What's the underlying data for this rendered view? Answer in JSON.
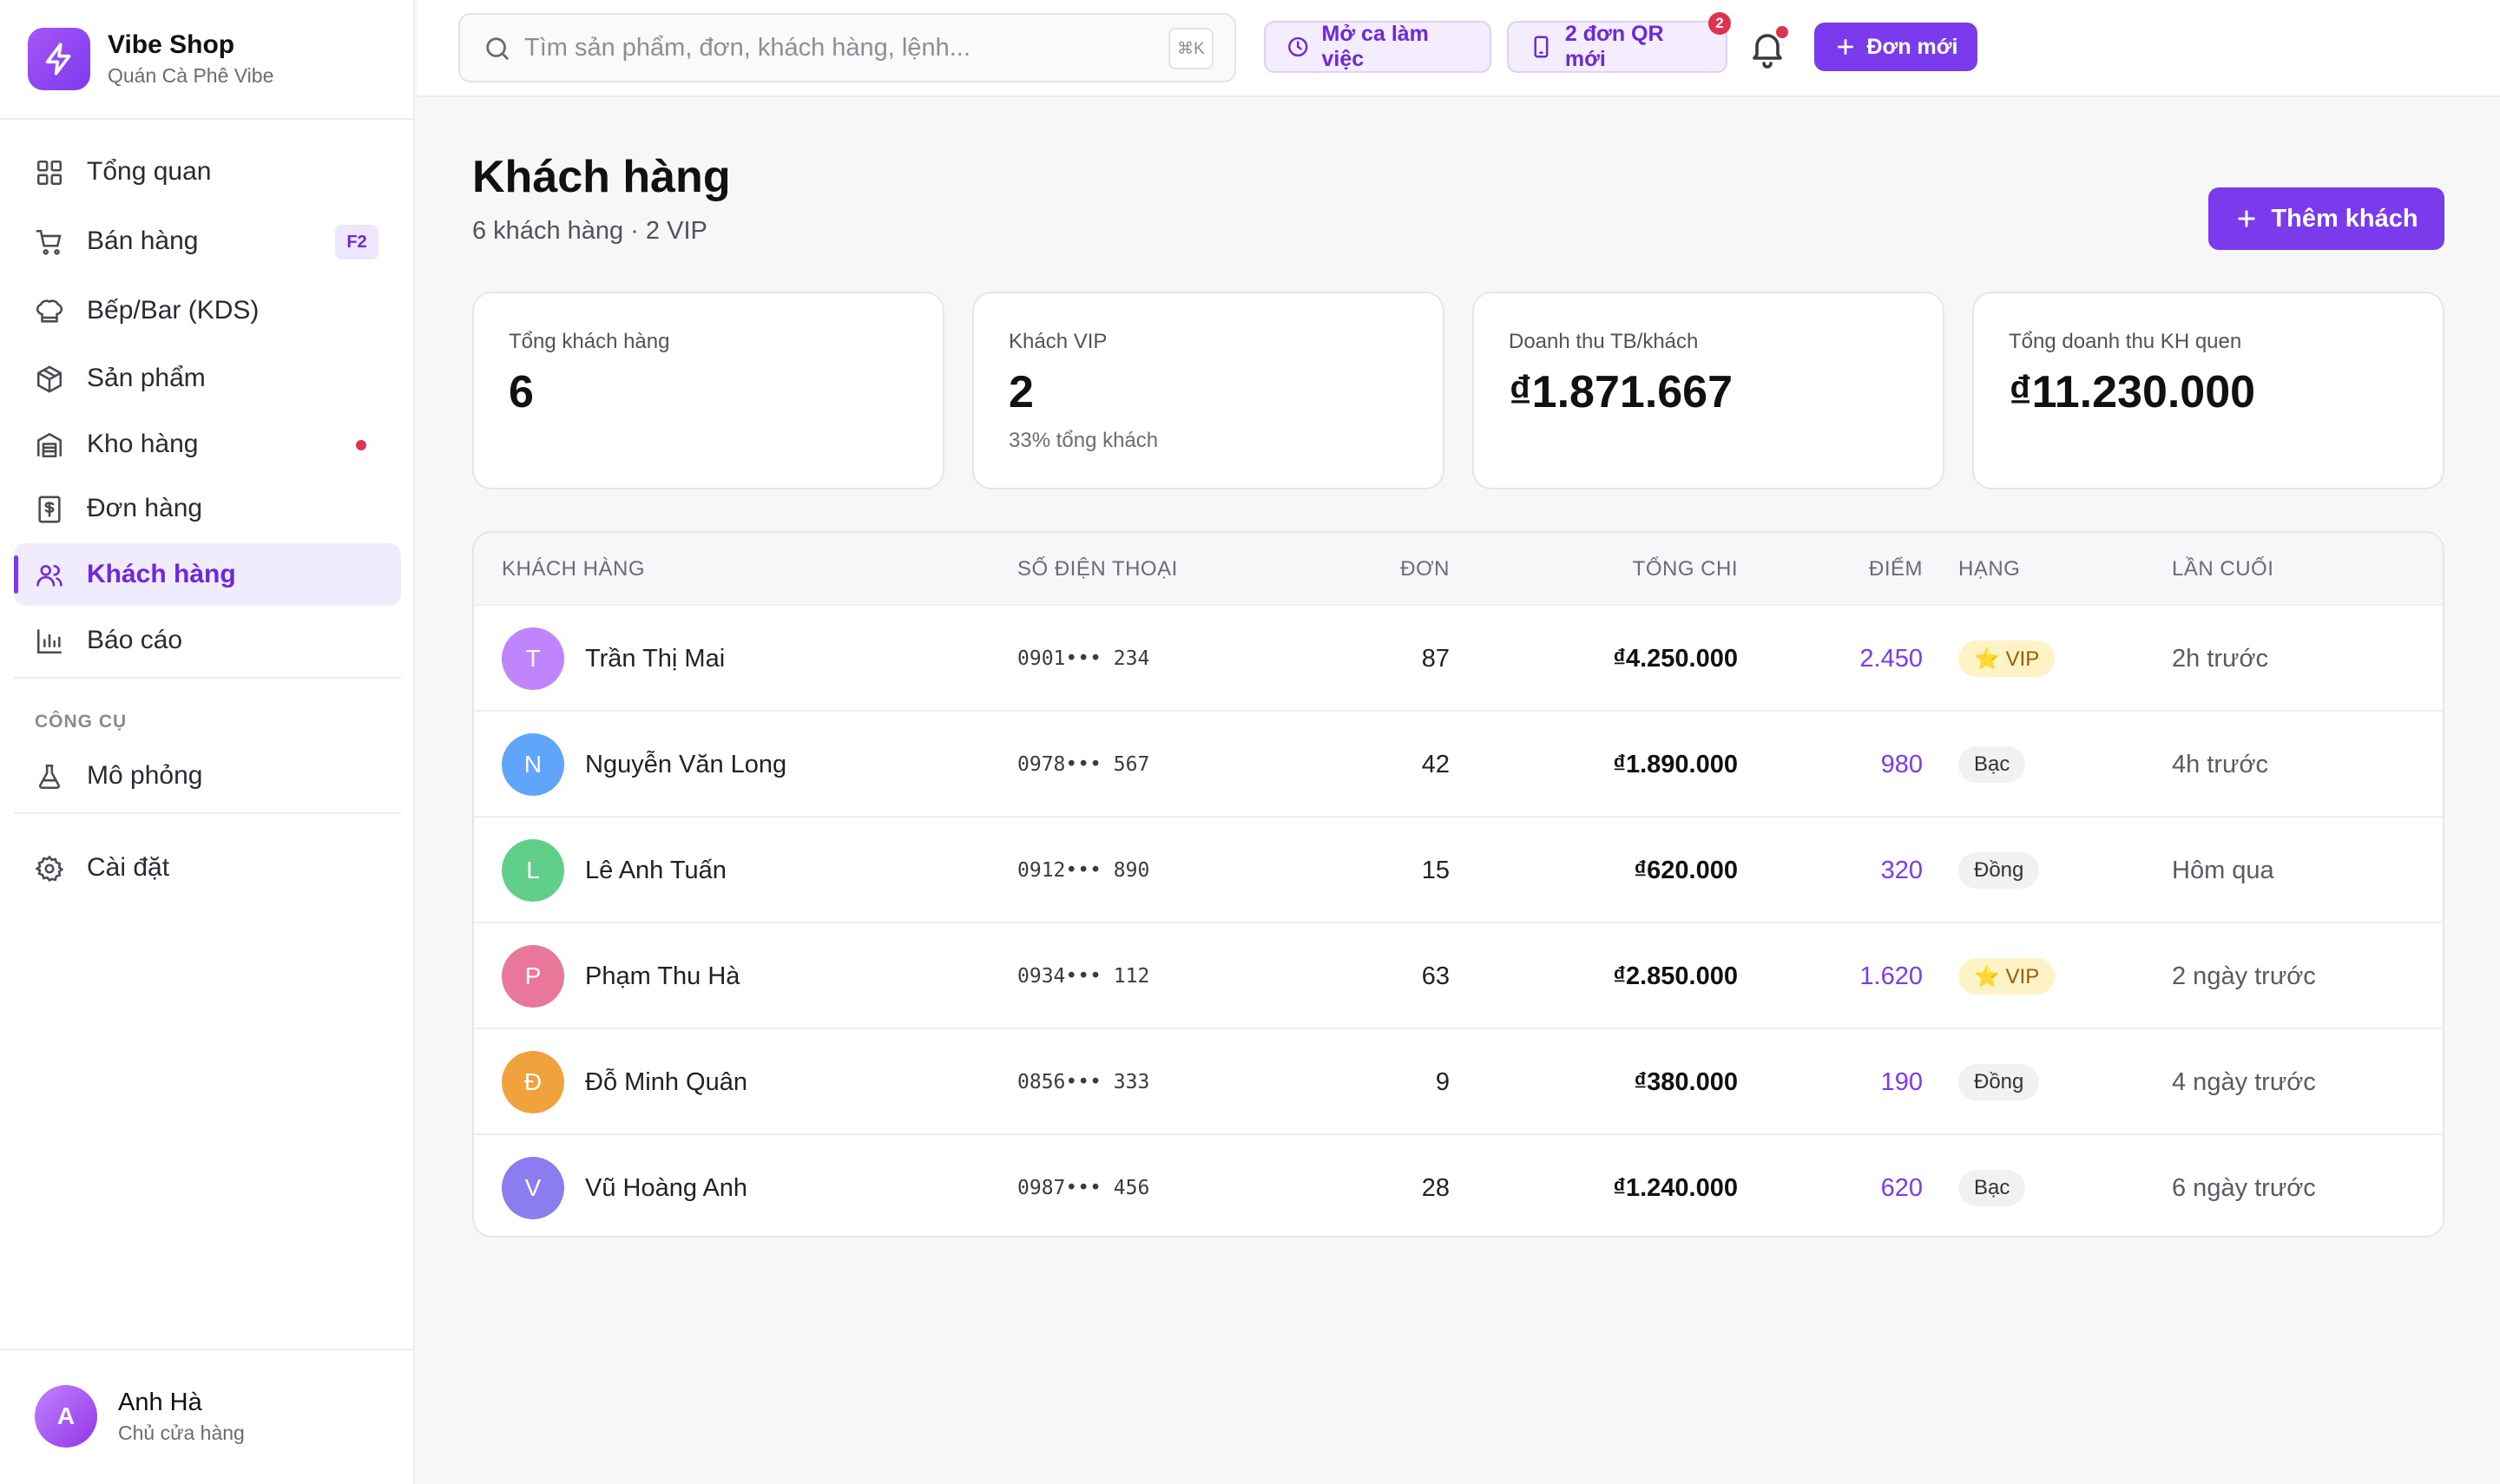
{
  "brand": {
    "name": "Vibe Shop",
    "subtitle": "Quán Cà Phê Vibe"
  },
  "sidebar": {
    "items": [
      {
        "label": "Tổng quan",
        "icon": "dashboard-icon"
      },
      {
        "label": "Bán hàng",
        "icon": "cart-icon",
        "shortcut": "F2"
      },
      {
        "label": "Bếp/Bar (KDS)",
        "icon": "chef-hat-icon"
      },
      {
        "label": "Sản phẩm",
        "icon": "package-icon"
      },
      {
        "label": "Kho hàng",
        "icon": "warehouse-icon",
        "alert": true
      },
      {
        "label": "Đơn hàng",
        "icon": "receipt-icon"
      },
      {
        "label": "Khách hàng",
        "icon": "users-icon",
        "active": true
      },
      {
        "label": "Báo cáo",
        "icon": "bar-chart-icon"
      }
    ],
    "tools_label": "CÔNG CỤ",
    "tools": [
      {
        "label": "Mô phỏng",
        "icon": "flask-icon"
      }
    ],
    "settings": {
      "label": "Cài đặt",
      "icon": "gear-icon"
    },
    "user": {
      "initial": "A",
      "name": "Anh Hà",
      "role": "Chủ cửa hàng"
    }
  },
  "topbar": {
    "search_placeholder": "Tìm sản phẩm, đơn, khách hàng, lệnh...",
    "search_shortcut": "⌘K",
    "shift_button": "Mở ca làm việc",
    "qr_button": "2 đơn QR mới",
    "qr_badge": "2",
    "new_order_button": "Đơn mới"
  },
  "page": {
    "title": "Khách hàng",
    "subtitle": "6 khách hàng · 2 VIP",
    "add_button": "Thêm khách"
  },
  "stats": [
    {
      "label": "Tổng khách hàng",
      "value": "6",
      "note": ""
    },
    {
      "label": "Khách VIP",
      "value": "2",
      "note": "33% tổng khách"
    },
    {
      "label": "Doanh thu TB/khách",
      "value": "₫1.871.667",
      "note": ""
    },
    {
      "label": "Tổng doanh thu KH quen",
      "value": "₫11.230.000",
      "note": ""
    }
  ],
  "table": {
    "headers": {
      "customer": "KHÁCH HÀNG",
      "phone": "SỐ ĐIỆN THOẠI",
      "orders": "ĐƠN",
      "spent": "TỔNG CHI",
      "points": "ĐIỂM",
      "tier": "HẠNG",
      "last": "LẦN CUỐI"
    },
    "rows": [
      {
        "initial": "T",
        "name": "Trần Thị Mai",
        "phone": "0901••• 234",
        "orders": "87",
        "spent": "₫4.250.000",
        "points": "2.450",
        "tier": "⭐ VIP",
        "tier_type": "vip",
        "last": "2h trước",
        "color": "#c084fc"
      },
      {
        "initial": "N",
        "name": "Nguyễn Văn Long",
        "phone": "0978••• 567",
        "orders": "42",
        "spent": "₫1.890.000",
        "points": "980",
        "tier": "Bạc",
        "tier_type": "plain",
        "last": "4h trước",
        "color": "#60a5fa"
      },
      {
        "initial": "L",
        "name": "Lê Anh Tuấn",
        "phone": "0912••• 890",
        "orders": "15",
        "spent": "₫620.000",
        "points": "320",
        "tier": "Đồng",
        "tier_type": "plain",
        "last": "Hôm qua",
        "color": "#5fcf8a"
      },
      {
        "initial": "P",
        "name": "Phạm Thu Hà",
        "phone": "0934••• 112",
        "orders": "63",
        "spent": "₫2.850.000",
        "points": "1.620",
        "tier": "⭐ VIP",
        "tier_type": "vip",
        "last": "2 ngày trước",
        "color": "#e8779a"
      },
      {
        "initial": "Đ",
        "name": "Đỗ Minh Quân",
        "phone": "0856••• 333",
        "orders": "9",
        "spent": "₫380.000",
        "points": "190",
        "tier": "Đồng",
        "tier_type": "plain",
        "last": "4 ngày trước",
        "color": "#f0a33c"
      },
      {
        "initial": "V",
        "name": "Vũ Hoàng Anh",
        "phone": "0987••• 456",
        "orders": "28",
        "spent": "₫1.240.000",
        "points": "620",
        "tier": "Bạc",
        "tier_type": "plain",
        "last": "6 ngày trước",
        "color": "#8b7cf0"
      }
    ]
  },
  "colors": {
    "accent": "#7c3aed",
    "accent_light": "#f1ebfe",
    "alert": "#e0324f"
  }
}
